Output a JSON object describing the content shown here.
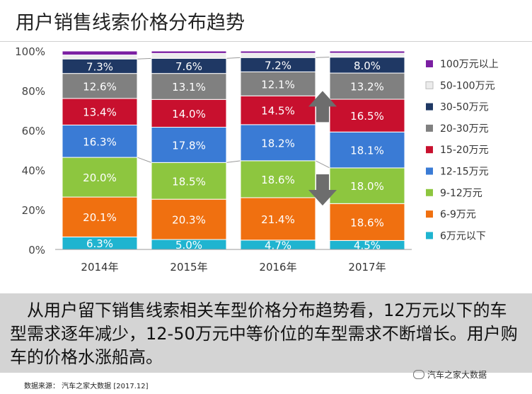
{
  "page": {
    "title": "用户销售线索价格分布趋势",
    "summary": "从用户留下销售线索相关车型价格分布趋势看，12万元以下的车型需求逐年减少，12-50万元中等价位的车型需求不断增长。用户购车的价格水涨船高。",
    "source": "数据来源：  汽车之家大数据 [2017.12]",
    "wechat": "汽车之家大数据"
  },
  "chart_data": {
    "type": "bar",
    "stacked": true,
    "categories": [
      "2014年",
      "2015年",
      "2016年",
      "2017年"
    ],
    "y_ticks": [
      "0%",
      "20%",
      "40%",
      "60%",
      "80%",
      "100%"
    ],
    "ylim": [
      0,
      100
    ],
    "legend_position": "right",
    "series": [
      {
        "name": "6万元以下",
        "color": "#1fb4d0",
        "values": [
          6.3,
          5.0,
          4.7,
          4.5
        ],
        "labels": [
          "6.3%",
          "5.0%",
          "4.7%",
          "4.5%"
        ]
      },
      {
        "name": "6-9万元",
        "color": "#f07010",
        "values": [
          20.1,
          20.3,
          21.4,
          18.6
        ],
        "labels": [
          "20.1%",
          "20.3%",
          "21.4%",
          "18.6%"
        ]
      },
      {
        "name": "9-12万元",
        "color": "#8dc63f",
        "values": [
          20.0,
          18.5,
          18.6,
          18.0
        ],
        "labels": [
          "20.0%",
          "18.5%",
          "18.6%",
          "18.0%"
        ]
      },
      {
        "name": "12-15万元",
        "color": "#3a7bd5",
        "values": [
          16.3,
          17.8,
          18.2,
          18.1
        ],
        "labels": [
          "16.3%",
          "17.8%",
          "18.2%",
          "18.1%"
        ]
      },
      {
        "name": "15-20万元",
        "color": "#c8102e",
        "values": [
          13.4,
          14.0,
          14.5,
          16.5
        ],
        "labels": [
          "13.4%",
          "14.0%",
          "14.5%",
          "16.5%"
        ]
      },
      {
        "name": "20-30万元",
        "color": "#808080",
        "values": [
          12.6,
          13.1,
          12.1,
          13.2
        ],
        "labels": [
          "12.6%",
          "13.1%",
          "12.1%",
          "13.2%"
        ]
      },
      {
        "name": "30-50万元",
        "color": "#1f3864",
        "values": [
          7.3,
          7.6,
          7.2,
          8.0
        ],
        "labels": [
          "7.3%",
          "7.6%",
          "7.2%",
          "8.0%"
        ]
      },
      {
        "name": "50-100万元",
        "color": "#ececec",
        "values": [
          2.0,
          2.5,
          2.2,
          2.0
        ],
        "labels": [
          "",
          "",
          "",
          ""
        ]
      },
      {
        "name": "100万元以上",
        "color": "#7b1fa2",
        "values": [
          2.0,
          1.2,
          1.1,
          1.1
        ],
        "labels": [
          "",
          "",
          "",
          ""
        ]
      }
    ],
    "annotations": [
      {
        "type": "arrow",
        "direction": "up",
        "color": "#6d6d6d"
      },
      {
        "type": "arrow",
        "direction": "down",
        "color": "#6d6d6d"
      }
    ]
  }
}
